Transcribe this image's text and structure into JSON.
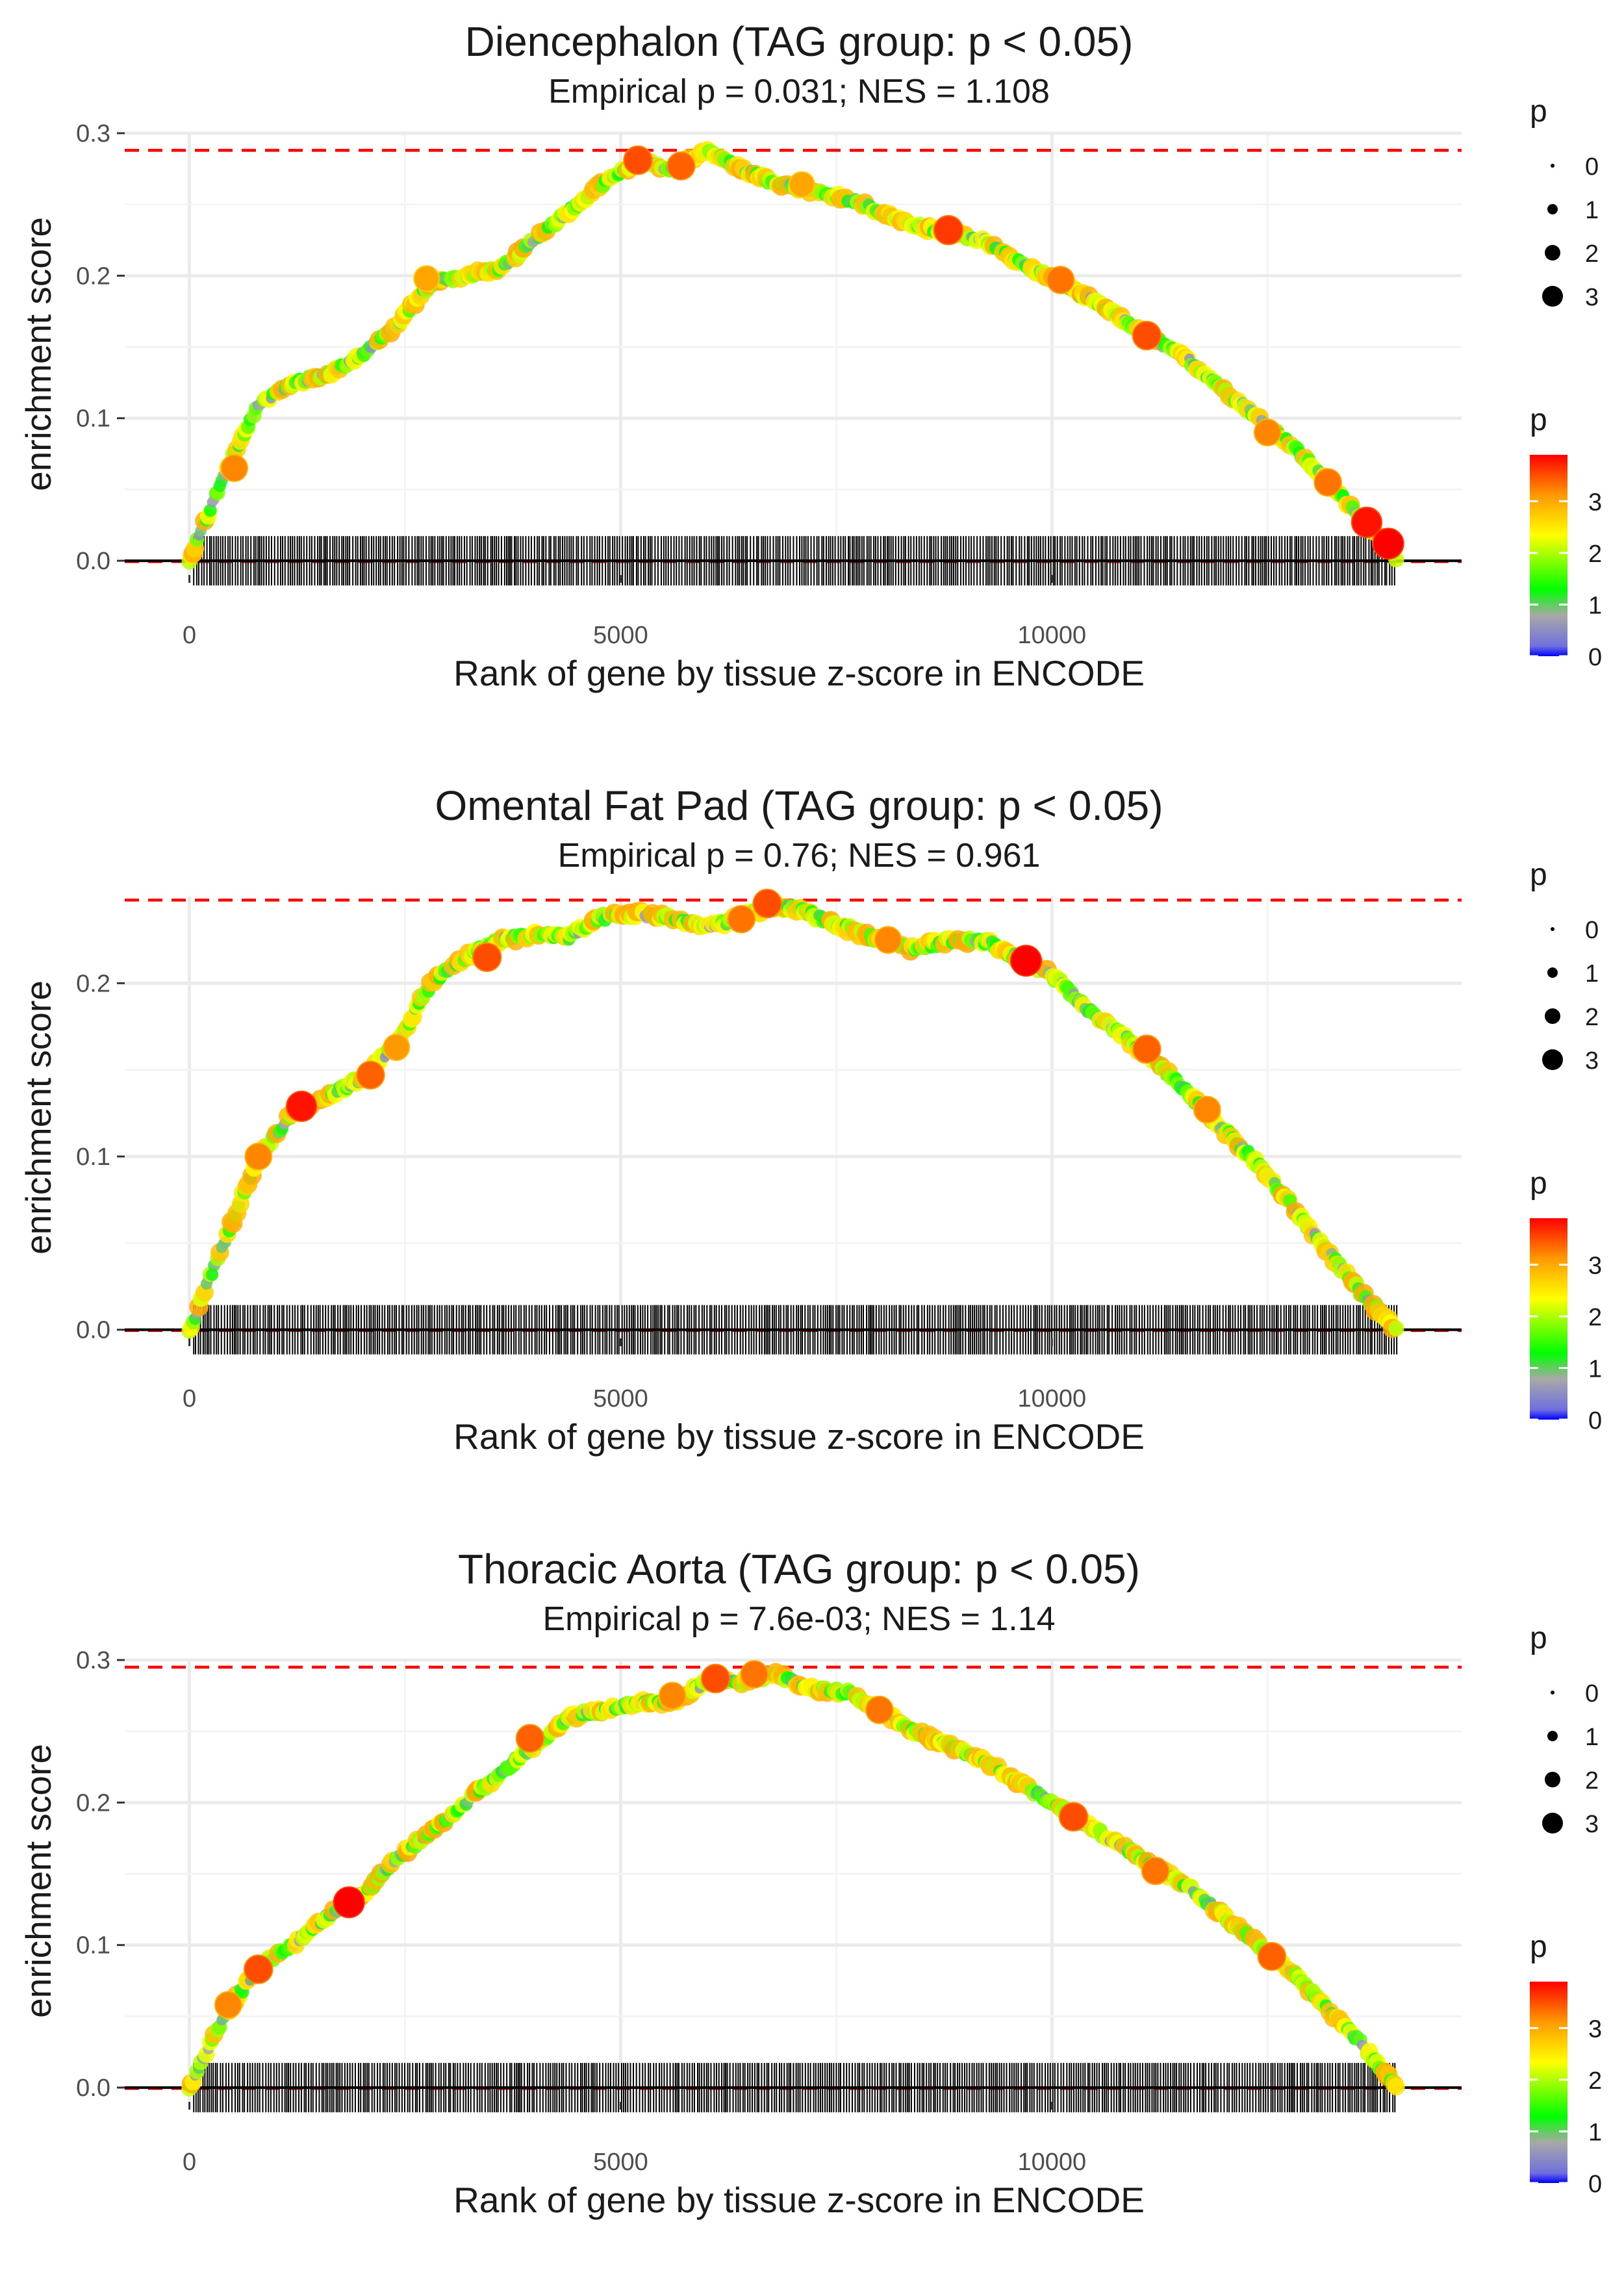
{
  "chart_data": [
    {
      "type": "line",
      "title": "Diencephalon (TAG group: p < 0.05)",
      "subtitle": "Empirical p = 0.031; NES = 1.108",
      "xlabel": "Rank of gene by tissue z-score in ENCODE",
      "ylabel": "enrichment score",
      "xlim": [
        -750,
        14750
      ],
      "ylim": [
        -0.01,
        0.3
      ],
      "xticks": [
        0,
        5000,
        10000
      ],
      "xtick_labels": [
        "0",
        "5000",
        "10000"
      ],
      "yticks": [
        0.0,
        0.1,
        0.2,
        0.3
      ],
      "ytick_labels": [
        "0.0",
        "0.1",
        "0.2",
        "0.3"
      ],
      "max_es_line": 0.288,
      "series": [
        {
          "name": "enrichment score",
          "x": [
            0,
            400,
            800,
            1200,
            1600,
            2000,
            2400,
            2800,
            3200,
            3600,
            4000,
            4400,
            4800,
            5200,
            5600,
            6000,
            6400,
            6800,
            7200,
            7600,
            8000,
            8400,
            8800,
            9200,
            9600,
            10000,
            10400,
            10800,
            11200,
            11600,
            12000,
            12400,
            12800,
            13200,
            13600,
            14000
          ],
          "y": [
            0.0,
            0.06,
            0.11,
            0.125,
            0.13,
            0.145,
            0.165,
            0.195,
            0.2,
            0.205,
            0.225,
            0.245,
            0.265,
            0.28,
            0.275,
            0.288,
            0.275,
            0.265,
            0.26,
            0.255,
            0.245,
            0.235,
            0.23,
            0.225,
            0.21,
            0.198,
            0.185,
            0.17,
            0.155,
            0.14,
            0.12,
            0.1,
            0.08,
            0.055,
            0.03,
            0.0
          ]
        }
      ],
      "highlighted_points": [
        {
          "x": 520,
          "y": 0.065,
          "p": 3.2
        },
        {
          "x": 2750,
          "y": 0.198,
          "p": 3.0
        },
        {
          "x": 5200,
          "y": 0.281,
          "p": 3.5
        },
        {
          "x": 5700,
          "y": 0.277,
          "p": 3.4
        },
        {
          "x": 7100,
          "y": 0.264,
          "p": 3.0
        },
        {
          "x": 8800,
          "y": 0.232,
          "p": 3.6
        },
        {
          "x": 10100,
          "y": 0.197,
          "p": 3.3
        },
        {
          "x": 11100,
          "y": 0.158,
          "p": 3.5
        },
        {
          "x": 12500,
          "y": 0.09,
          "p": 3.2
        },
        {
          "x": 13200,
          "y": 0.055,
          "p": 3.3
        },
        {
          "x": 13650,
          "y": 0.027,
          "p": 3.8
        },
        {
          "x": 13900,
          "y": 0.012,
          "p": 3.9
        }
      ],
      "legend_size": {
        "title": "p",
        "items": [
          "0",
          "1",
          "2",
          "3"
        ]
      },
      "legend_color": {
        "title": "p",
        "ticks": [
          "0",
          "1",
          "2",
          "3"
        ],
        "range": [
          0,
          3.9
        ]
      }
    },
    {
      "type": "line",
      "title": "Omental Fat Pad (TAG group: p < 0.05)",
      "subtitle": "Empirical p = 0.76; NES = 0.961",
      "xlabel": "Rank of gene by tissue z-score in ENCODE",
      "ylabel": "enrichment score",
      "xlim": [
        -750,
        14750
      ],
      "ylim": [
        -0.005,
        0.25
      ],
      "xticks": [
        0,
        5000,
        10000
      ],
      "xtick_labels": [
        "0",
        "5000",
        "10000"
      ],
      "yticks": [
        0.0,
        0.1,
        0.2
      ],
      "ytick_labels": [
        "0.0",
        "0.1",
        "0.2"
      ],
      "max_es_line": 0.248,
      "series": [
        {
          "name": "enrichment score",
          "x": [
            0,
            400,
            800,
            1200,
            1600,
            2000,
            2400,
            2800,
            3200,
            3600,
            4000,
            4400,
            4800,
            5200,
            5600,
            6000,
            6400,
            6800,
            7200,
            7600,
            8000,
            8400,
            8800,
            9200,
            9600,
            10000,
            10400,
            10800,
            11200,
            11600,
            12000,
            12400,
            12800,
            13200,
            13600,
            14000
          ],
          "y": [
            0.0,
            0.05,
            0.1,
            0.125,
            0.135,
            0.145,
            0.165,
            0.2,
            0.215,
            0.225,
            0.228,
            0.227,
            0.238,
            0.24,
            0.238,
            0.232,
            0.238,
            0.245,
            0.24,
            0.232,
            0.225,
            0.22,
            0.225,
            0.225,
            0.215,
            0.205,
            0.185,
            0.17,
            0.155,
            0.135,
            0.115,
            0.095,
            0.07,
            0.045,
            0.02,
            0.0
          ]
        }
      ],
      "highlighted_points": [
        {
          "x": 800,
          "y": 0.1,
          "p": 3.2
        },
        {
          "x": 1300,
          "y": 0.129,
          "p": 3.8
        },
        {
          "x": 2100,
          "y": 0.147,
          "p": 3.4
        },
        {
          "x": 2400,
          "y": 0.163,
          "p": 3.1
        },
        {
          "x": 3450,
          "y": 0.215,
          "p": 3.5
        },
        {
          "x": 6400,
          "y": 0.237,
          "p": 3.3
        },
        {
          "x": 6700,
          "y": 0.246,
          "p": 3.5
        },
        {
          "x": 8100,
          "y": 0.225,
          "p": 3.2
        },
        {
          "x": 9700,
          "y": 0.213,
          "p": 3.9
        },
        {
          "x": 11100,
          "y": 0.162,
          "p": 3.4
        },
        {
          "x": 11800,
          "y": 0.127,
          "p": 3.2
        }
      ],
      "legend_size": {
        "title": "p",
        "items": [
          "0",
          "1",
          "2",
          "3"
        ]
      },
      "legend_color": {
        "title": "p",
        "ticks": [
          "0",
          "1",
          "2",
          "3"
        ],
        "range": [
          0,
          3.9
        ]
      }
    },
    {
      "type": "line",
      "title": "Thoracic Aorta (TAG group: p < 0.05)",
      "subtitle": "Empirical p = 7.6e-03; NES = 1.14",
      "xlabel": "Rank of gene by tissue z-score in ENCODE",
      "ylabel": "enrichment score",
      "xlim": [
        -750,
        14750
      ],
      "ylim": [
        -0.01,
        0.3
      ],
      "xticks": [
        0,
        5000,
        10000
      ],
      "xtick_labels": [
        "0",
        "5000",
        "10000"
      ],
      "yticks": [
        0.0,
        0.1,
        0.2,
        0.3
      ],
      "ytick_labels": [
        "0.0",
        "0.1",
        "0.2",
        "0.3"
      ],
      "max_es_line": 0.295,
      "series": [
        {
          "name": "enrichment score",
          "x": [
            0,
            400,
            800,
            1200,
            1600,
            2000,
            2400,
            2800,
            3200,
            3600,
            4000,
            4400,
            4800,
            5200,
            5600,
            6000,
            6400,
            6800,
            7200,
            7600,
            8000,
            8400,
            8800,
            9200,
            9600,
            10000,
            10400,
            10800,
            11200,
            11600,
            12000,
            12400,
            12800,
            13200,
            13600,
            14000
          ],
          "y": [
            0.0,
            0.05,
            0.085,
            0.1,
            0.12,
            0.135,
            0.16,
            0.18,
            0.2,
            0.22,
            0.24,
            0.26,
            0.265,
            0.27,
            0.27,
            0.285,
            0.285,
            0.29,
            0.28,
            0.278,
            0.265,
            0.25,
            0.24,
            0.23,
            0.215,
            0.2,
            0.185,
            0.17,
            0.155,
            0.14,
            0.12,
            0.1,
            0.08,
            0.055,
            0.03,
            0.0
          ]
        }
      ],
      "highlighted_points": [
        {
          "x": 450,
          "y": 0.058,
          "p": 3.2
        },
        {
          "x": 800,
          "y": 0.083,
          "p": 3.5
        },
        {
          "x": 1850,
          "y": 0.13,
          "p": 3.9
        },
        {
          "x": 3950,
          "y": 0.245,
          "p": 3.4
        },
        {
          "x": 5600,
          "y": 0.275,
          "p": 3.2
        },
        {
          "x": 6100,
          "y": 0.287,
          "p": 3.5
        },
        {
          "x": 6550,
          "y": 0.29,
          "p": 3.3
        },
        {
          "x": 8000,
          "y": 0.265,
          "p": 3.3
        },
        {
          "x": 10250,
          "y": 0.19,
          "p": 3.5
        },
        {
          "x": 11200,
          "y": 0.152,
          "p": 3.3
        },
        {
          "x": 12550,
          "y": 0.092,
          "p": 3.4
        }
      ],
      "legend_size": {
        "title": "p",
        "items": [
          "0",
          "1",
          "2",
          "3"
        ]
      },
      "legend_color": {
        "title": "p",
        "ticks": [
          "0",
          "1",
          "2",
          "3"
        ],
        "range": [
          0,
          3.9
        ]
      }
    }
  ]
}
